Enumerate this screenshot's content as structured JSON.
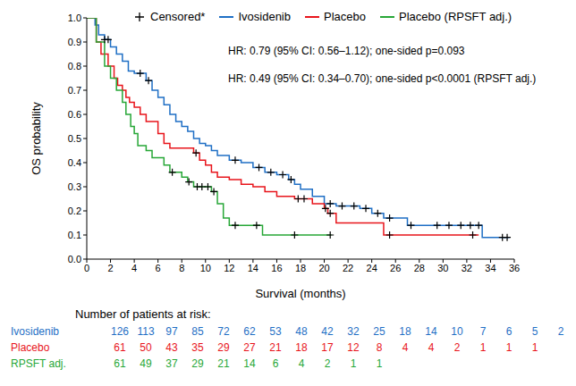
{
  "chart_data": {
    "type": "step",
    "xlabel": "Survival (months)",
    "ylabel": "OS probability",
    "xlim": [
      0,
      36
    ],
    "xticks": [
      0,
      2,
      4,
      6,
      8,
      10,
      12,
      14,
      16,
      18,
      20,
      22,
      24,
      26,
      28,
      30,
      32,
      34,
      36
    ],
    "ylim": [
      0,
      1
    ],
    "yticks": [
      {
        "value": 0,
        "label": "0.0"
      },
      0.1,
      0.2,
      0.3,
      0.4,
      0.5,
      0.6,
      0.7,
      0.8,
      0.9,
      {
        "value": 1,
        "label": "1.0"
      }
    ],
    "legend": "top",
    "censored_label": "Censored*",
    "annotations": [
      "HR: 0.79 (95% CI: 0.56–1.12); one-sided p=0.093",
      "HR: 0.49 (95% CI: 0.34–0.70); one-sided p<0.0001 (RPSFT adj.)"
    ],
    "at_risk_title": "Number of patients at risk:",
    "at_risk_x": [
      0,
      2,
      4,
      6,
      8,
      10,
      12,
      14,
      16,
      18,
      20,
      22,
      24,
      26,
      28,
      30,
      32,
      34
    ],
    "series": [
      {
        "name": "Ivosidenib",
        "color": "#1f6fc5",
        "marker": "+",
        "x": [
          0,
          0.7,
          1,
          1.5,
          2,
          2.5,
          3,
          3.5,
          4,
          5,
          5.5,
          6,
          6.5,
          7,
          7.5,
          8,
          8.5,
          9,
          9.5,
          10,
          10.5,
          11,
          12,
          13,
          14,
          15,
          16,
          17,
          17.5,
          18,
          19,
          20,
          21,
          23,
          24,
          25,
          27,
          33.3,
          35.6
        ],
        "values": [
          1,
          0.97,
          0.93,
          0.91,
          0.88,
          0.85,
          0.82,
          0.78,
          0.77,
          0.74,
          0.7,
          0.67,
          0.64,
          0.6,
          0.57,
          0.55,
          0.53,
          0.5,
          0.48,
          0.47,
          0.45,
          0.43,
          0.41,
          0.4,
          0.38,
          0.36,
          0.35,
          0.33,
          0.31,
          0.29,
          0.26,
          0.23,
          0.22,
          0.21,
          0.19,
          0.17,
          0.14,
          0.09,
          0.09
        ],
        "censored": {
          "x": [
            1.5,
            1.8,
            4.5,
            5.2,
            12.5,
            14.5,
            15.5,
            16.5,
            17.2,
            20.5,
            21.5,
            22.5,
            23.5,
            24.5,
            25.5,
            27.3,
            29.5,
            30.5,
            31.5,
            32.3,
            33,
            35,
            35.4
          ],
          "y": [
            0.91,
            0.91,
            0.77,
            0.74,
            0.41,
            0.38,
            0.36,
            0.35,
            0.33,
            0.23,
            0.22,
            0.22,
            0.21,
            0.19,
            0.17,
            0.14,
            0.14,
            0.14,
            0.14,
            0.14,
            0.14,
            0.09,
            0.09
          ]
        },
        "at_risk_label": "Ivosidenib",
        "at_risk": [
          126,
          113,
          97,
          85,
          72,
          62,
          53,
          48,
          42,
          32,
          25,
          18,
          14,
          10,
          7,
          6,
          5,
          2
        ]
      },
      {
        "name": "Placebo",
        "color": "#e8141b",
        "marker": "+",
        "x": [
          0,
          0.8,
          1.2,
          1.8,
          2.3,
          2.6,
          3,
          3.3,
          3.6,
          4,
          4.5,
          5,
          6,
          6.5,
          7,
          9,
          9.5,
          10,
          10.5,
          11,
          12,
          13,
          14,
          15,
          16,
          17.5,
          19,
          20,
          20.3,
          21,
          25,
          33
        ],
        "values": [
          1,
          0.9,
          0.85,
          0.8,
          0.75,
          0.72,
          0.7,
          0.67,
          0.65,
          0.63,
          0.6,
          0.57,
          0.52,
          0.48,
          0.46,
          0.44,
          0.41,
          0.39,
          0.36,
          0.34,
          0.33,
          0.31,
          0.3,
          0.28,
          0.26,
          0.25,
          0.23,
          0.21,
          0.19,
          0.15,
          0.1,
          0.1
        ],
        "censored": {
          "x": [
            9.2,
            17.8,
            18.3,
            20.1,
            20.5,
            25.5,
            32.5
          ],
          "y": [
            0.44,
            0.25,
            0.25,
            0.21,
            0.19,
            0.1,
            0.1
          ]
        },
        "at_risk_label": "Placebo",
        "at_risk": [
          61,
          50,
          43,
          35,
          29,
          27,
          21,
          18,
          17,
          12,
          8,
          4,
          4,
          2,
          1,
          1,
          1
        ]
      },
      {
        "name": "Placebo (RPSFT adj.)",
        "color": "#27a737",
        "marker": "+",
        "x": [
          0,
          0.8,
          1.5,
          2,
          2.5,
          3,
          3.3,
          3.7,
          4,
          4.3,
          5,
          5.5,
          6.5,
          7,
          8,
          8.5,
          9,
          10.5,
          11,
          11.5,
          12,
          14.8,
          20.6
        ],
        "values": [
          1,
          0.9,
          0.8,
          0.75,
          0.7,
          0.65,
          0.6,
          0.55,
          0.52,
          0.47,
          0.45,
          0.42,
          0.39,
          0.36,
          0.34,
          0.32,
          0.3,
          0.28,
          0.23,
          0.17,
          0.14,
          0.1,
          0.1
        ],
        "censored": {
          "x": [
            7.2,
            8.6,
            9.3,
            9.7,
            10.2,
            10.7,
            12.5,
            14.3,
            17.5,
            20.5
          ],
          "y": [
            0.36,
            0.32,
            0.3,
            0.3,
            0.3,
            0.28,
            0.14,
            0.14,
            0.1,
            0.1
          ]
        },
        "at_risk_label": "RPSFT adj.",
        "at_risk": [
          61,
          49,
          37,
          29,
          21,
          14,
          6,
          4,
          2,
          1,
          1
        ]
      }
    ]
  }
}
